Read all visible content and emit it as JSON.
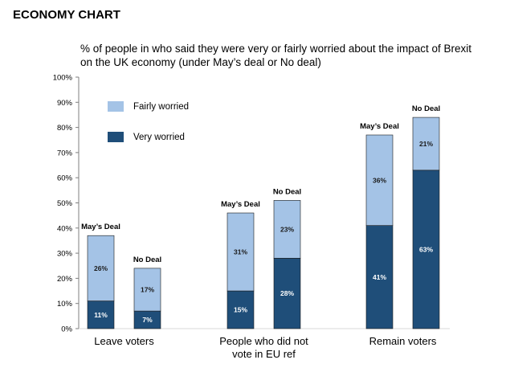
{
  "heading": "ECONOMY CHART",
  "chart_data": {
    "type": "bar",
    "stacked": true,
    "title": "% of people in who said they were very or fairly worried about the impact of Brexit on the UK economy (under May’s deal or No deal)",
    "ylim": [
      0,
      100
    ],
    "yticks": [
      "0%",
      "10%",
      "20%",
      "30%",
      "40%",
      "50%",
      "60%",
      "70%",
      "80%",
      "90%",
      "100%"
    ],
    "groups": [
      {
        "label": [
          "Leave voters"
        ],
        "bars": [
          {
            "label": "May’s Deal",
            "very": 11,
            "fairly": 26
          },
          {
            "label": "No Deal",
            "very": 7,
            "fairly": 17
          }
        ]
      },
      {
        "label": [
          "People who did not",
          "vote in EU ref"
        ],
        "bars": [
          {
            "label": "May’s Deal",
            "very": 15,
            "fairly": 31
          },
          {
            "label": "No Deal",
            "very": 28,
            "fairly": 23
          }
        ]
      },
      {
        "label": [
          "Remain voters"
        ],
        "bars": [
          {
            "label": "May’s Deal",
            "very": 41,
            "fairly": 36
          },
          {
            "label": "No Deal",
            "very": 63,
            "fairly": 21
          }
        ]
      }
    ],
    "series": [
      {
        "key": "fairly",
        "name": "Fairly worried",
        "color": "#a4c3e6"
      },
      {
        "key": "very",
        "name": "Very worried",
        "color": "#1f4e79"
      }
    ],
    "legend_position": "top-left"
  }
}
